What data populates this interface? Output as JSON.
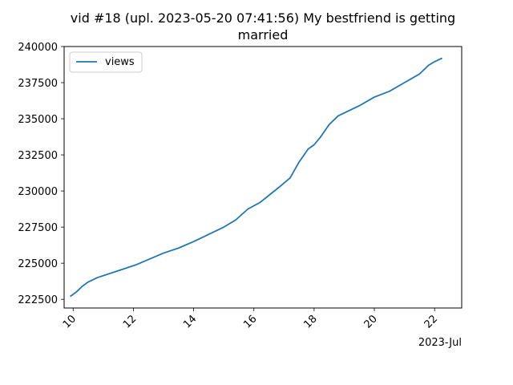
{
  "chart_data": {
    "type": "line",
    "title_line1": "vid #18 (upl. 2023-05-20 07:41:56) My bestfriend is getting",
    "title_line2": "married",
    "xlabel": "",
    "ylabel": "",
    "x_offset_label": "2023-Jul",
    "x_range": [
      9.7,
      22.9
    ],
    "ylim": [
      221900,
      240000
    ],
    "x_ticks": [
      10,
      12,
      14,
      16,
      18,
      20,
      22
    ],
    "x_tick_labels": [
      "10",
      "12",
      "14",
      "16",
      "18",
      "20",
      "22"
    ],
    "y_ticks": [
      222500,
      225000,
      227500,
      230000,
      232500,
      235000,
      237500,
      240000
    ],
    "y_tick_labels": [
      "222500",
      "225000",
      "227500",
      "230000",
      "232500",
      "235000",
      "237500",
      "240000"
    ],
    "grid": false,
    "legend_position": "upper-left",
    "color": "#1f77b4",
    "series": [
      {
        "name": "views",
        "x": [
          9.9,
          10.1,
          10.3,
          10.5,
          10.8,
          12.1,
          13.0,
          13.5,
          14.0,
          14.5,
          15.0,
          15.4,
          15.8,
          16.2,
          16.5,
          16.8,
          17.2,
          17.5,
          17.8,
          18.0,
          18.2,
          18.5,
          18.8,
          19.0,
          19.5,
          20.0,
          20.5,
          21.0,
          21.5,
          21.8,
          22.0,
          22.25
        ],
        "y": [
          222700,
          223000,
          223400,
          223700,
          224000,
          224900,
          225700,
          226050,
          226500,
          227000,
          227500,
          228000,
          228750,
          229200,
          229700,
          230200,
          230900,
          232000,
          232900,
          233200,
          233700,
          234600,
          235200,
          235400,
          235900,
          236500,
          236900,
          237500,
          238100,
          238700,
          238950,
          239200
        ]
      }
    ]
  }
}
